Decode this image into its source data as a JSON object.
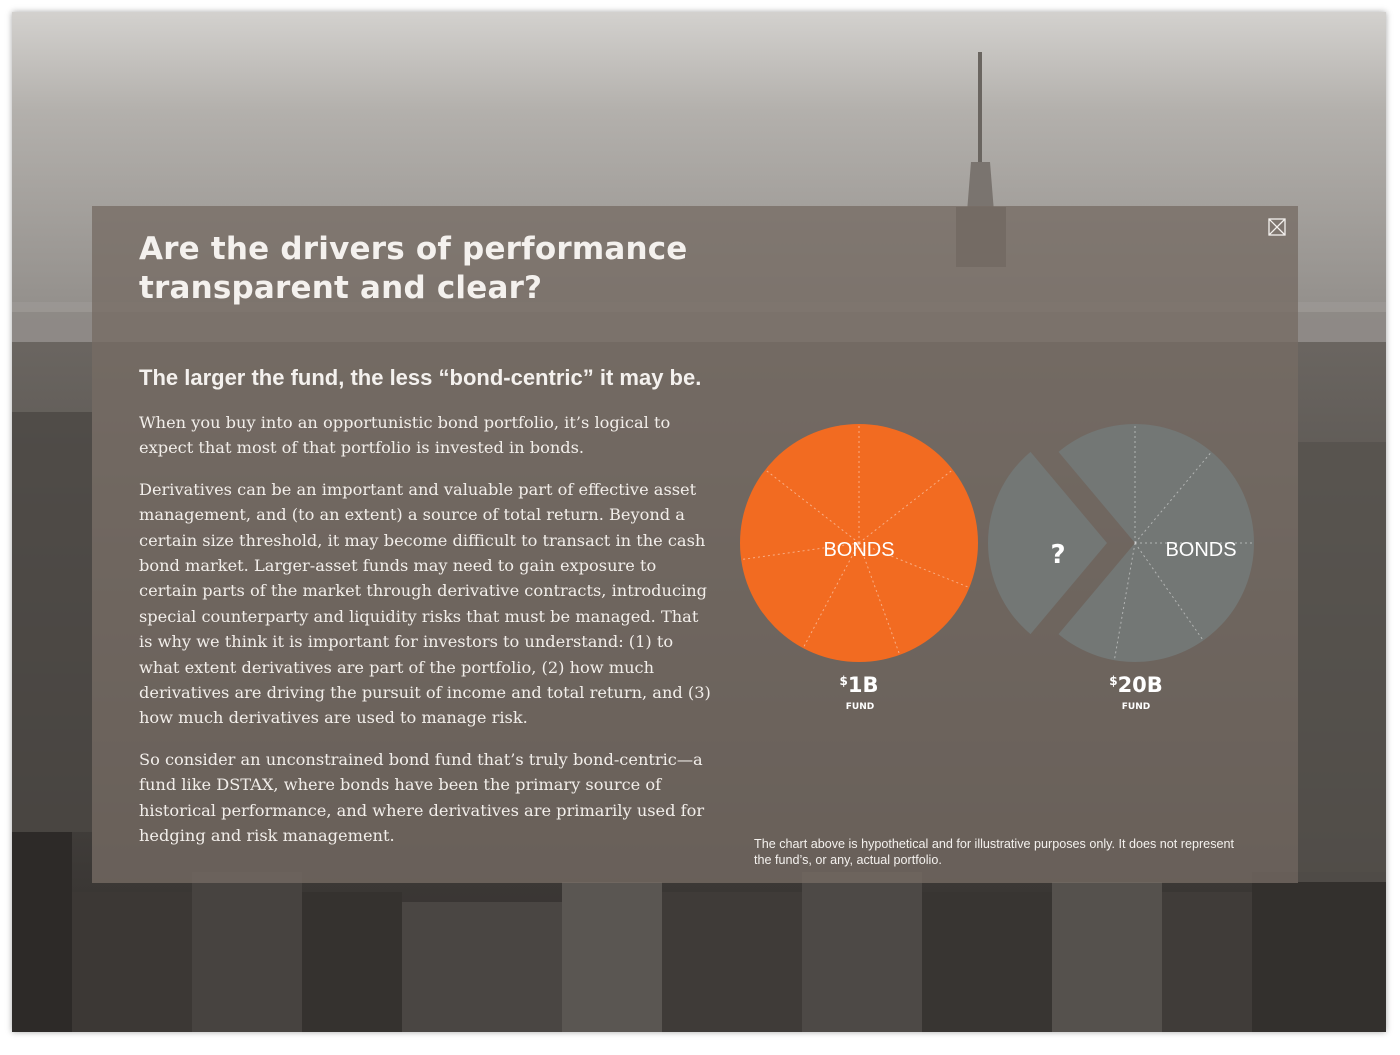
{
  "modal": {
    "close_label": "close",
    "headline": "Are the drivers of performance transparent and clear?",
    "subhead": "The larger the fund, the less “bond-centric” it may be.",
    "paragraphs": [
      "When you buy into an opportunistic bond portfolio, it’s logical to expect that most of that portfolio is invested in bonds.",
      "Derivatives can be an important and valuable part of effective asset management, and (to an extent) a source of total return. Beyond a certain size threshold, it may become difficult to transact in the cash bond market. Larger-asset funds may need to gain exposure to certain parts of the market through derivative contracts, introducing special counterparty and liquidity risks that must be managed. That is why we think it is important for investors to understand: (1) to what extent derivatives are part of the portfolio, (2) how much derivatives are driving the pursuit of income and total return, and (3) how much derivatives are used to manage risk.",
      "So consider an unconstrained bond fund that’s truly bond-centric—a fund like DSTAX, where bonds have been the primary source of historical performance, and where derivatives are primarily used for hedging and risk management."
    ],
    "disclaimer": "The chart above is hypothetical and for illustrative purposes only. It does not represent the fund’s, or any, actual portfolio."
  },
  "pies": [
    {
      "slice_label": "BONDS",
      "currency_symbol": "$",
      "amount": "1B",
      "fund_word": "FUND",
      "color": "#f26b21",
      "unknown_fraction": 0
    },
    {
      "slice_label": "BONDS",
      "unknown_label": "?",
      "currency_symbol": "$",
      "amount": "20B",
      "fund_word": "FUND",
      "color": "#737775",
      "unknown_fraction": 0.2
    }
  ],
  "icons": {
    "close": "close-x-box-icon"
  },
  "colors": {
    "overlay": "#766c64",
    "orange": "#f26b21",
    "gray": "#737775"
  }
}
